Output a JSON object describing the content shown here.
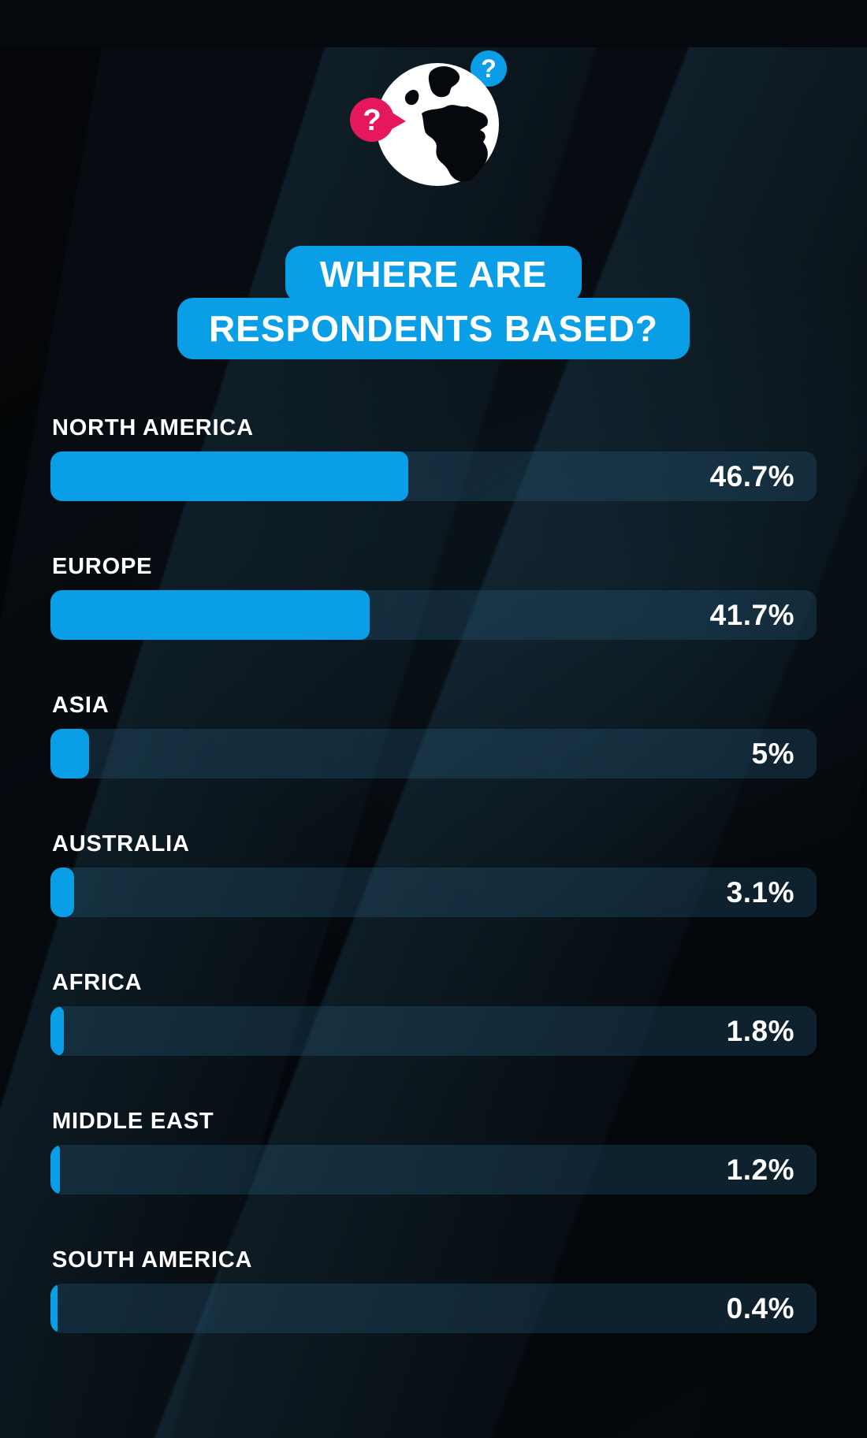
{
  "title": {
    "line1": "WHERE ARE",
    "line2": "RESPONDENTS BASED?"
  },
  "header_icon": "globe-with-question-marks",
  "colors": {
    "accent_blue": "#0a9ee6",
    "accent_pink": "#e5185e",
    "background": "#05080c",
    "track": "#0d2a38",
    "text": "#ffffff"
  },
  "chart_data": {
    "type": "bar",
    "orientation": "horizontal",
    "title": "WHERE ARE RESPONDENTS BASED?",
    "unit": "%",
    "xlim": [
      0,
      100
    ],
    "grid": false,
    "legend": false,
    "categories": [
      "NORTH AMERICA",
      "EUROPE",
      "ASIA",
      "AUSTRALIA",
      "AFRICA",
      "MIDDLE EAST",
      "SOUTH AMERICA"
    ],
    "values": [
      46.7,
      41.7,
      5,
      3.1,
      1.8,
      1.2,
      0.4
    ],
    "value_labels": [
      "46.7%",
      "41.7%",
      "5%",
      "3.1%",
      "1.8%",
      "1.2%",
      "0.4%"
    ]
  }
}
